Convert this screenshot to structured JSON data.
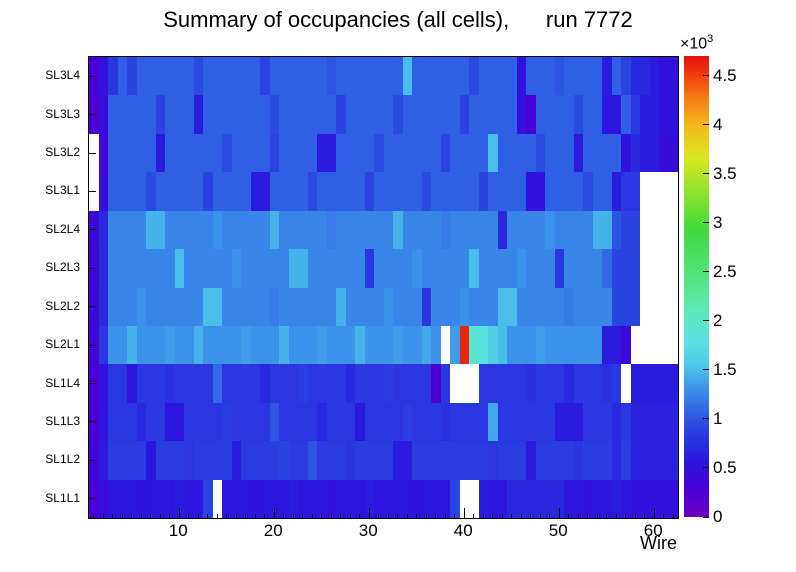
{
  "chart_data": {
    "type": "heatmap",
    "title": "Summary of occupancies (all cells),      run 7772",
    "xlabel": "Wire",
    "ylabel": "",
    "x_ticks": [
      10,
      20,
      30,
      40,
      50,
      60
    ],
    "x_range": [
      0.5,
      62.5
    ],
    "n_wires": 62,
    "row_labels_top_to_bottom": [
      "SL3L4",
      "SL3L3",
      "SL3L2",
      "SL3L1",
      "SL2L4",
      "SL2L3",
      "SL2L2",
      "SL2L1",
      "SL1L4",
      "SL1L3",
      "SL1L2",
      "SL1L1"
    ],
    "zmax": 4700,
    "z_tick_scale": 1000,
    "colorbar_ticks": [
      0,
      0.5,
      1,
      1.5,
      2,
      2.5,
      3,
      3.5,
      4,
      4.5
    ],
    "z_scale_label": {
      "base": "×10",
      "exp": "3"
    },
    "empty_color": "#ffffff",
    "palette_stops": [
      [
        0.0,
        "#6f00bf"
      ],
      [
        0.06,
        "#4a00d6"
      ],
      [
        0.12,
        "#2a16dc"
      ],
      [
        0.2,
        "#2a49e2"
      ],
      [
        0.27,
        "#3a8ae8"
      ],
      [
        0.33,
        "#4fc8ea"
      ],
      [
        0.38,
        "#59e2e2"
      ],
      [
        0.45,
        "#5aeab4"
      ],
      [
        0.53,
        "#53e27a"
      ],
      [
        0.62,
        "#3fd93f"
      ],
      [
        0.7,
        "#8ae22e"
      ],
      [
        0.78,
        "#d9e822"
      ],
      [
        0.85,
        "#f5b71c"
      ],
      [
        0.91,
        "#f57c14"
      ],
      [
        0.96,
        "#f03a0e"
      ],
      [
        1.0,
        "#e60f0f"
      ]
    ],
    "matrix_rows_top_to_bottom": [
      [
        300,
        500,
        800,
        1050,
        900,
        1050,
        1050,
        1050,
        1050,
        1050,
        1050,
        950,
        1050,
        1050,
        1050,
        1050,
        1050,
        1050,
        900,
        1050,
        1050,
        1050,
        1050,
        1050,
        1050,
        1000,
        1050,
        1050,
        1050,
        1050,
        1050,
        1050,
        1050,
        1500,
        1050,
        1050,
        1050,
        1050,
        1050,
        1050,
        950,
        1050,
        1050,
        1050,
        1050,
        500,
        1050,
        1050,
        1050,
        1000,
        1050,
        1050,
        1050,
        1050,
        600,
        1050,
        900,
        700,
        700,
        600,
        500,
        500
      ],
      [
        250,
        450,
        1050,
        1050,
        1050,
        1050,
        1050,
        900,
        1050,
        1050,
        1050,
        600,
        1050,
        1050,
        1050,
        1050,
        1050,
        1050,
        1050,
        950,
        1050,
        1050,
        1050,
        1050,
        1050,
        1050,
        900,
        1050,
        1050,
        1050,
        1050,
        1050,
        950,
        1050,
        1050,
        1050,
        1050,
        1050,
        1050,
        900,
        1050,
        1050,
        1050,
        1050,
        1050,
        500,
        300,
        1050,
        1050,
        1050,
        1050,
        950,
        1050,
        1050,
        550,
        550,
        1050,
        800,
        600,
        600,
        500,
        500
      ],
      [
        null,
        400,
        1050,
        1050,
        1050,
        1050,
        1050,
        600,
        1050,
        1050,
        1050,
        1050,
        1050,
        1050,
        950,
        1050,
        1050,
        1050,
        1050,
        900,
        1050,
        1050,
        1050,
        1050,
        600,
        600,
        1050,
        1050,
        1050,
        1050,
        950,
        1050,
        1050,
        1050,
        1050,
        1050,
        1050,
        900,
        1050,
        1050,
        1050,
        1050,
        1500,
        1050,
        1050,
        1050,
        1050,
        950,
        1050,
        1050,
        1050,
        600,
        1050,
        1050,
        1050,
        1050,
        500,
        700,
        600,
        600,
        450,
        450
      ],
      [
        null,
        450,
        1050,
        1050,
        1050,
        1050,
        950,
        1050,
        1050,
        1050,
        1050,
        1050,
        900,
        1050,
        1050,
        1050,
        1050,
        600,
        600,
        1050,
        1050,
        1050,
        1050,
        950,
        1050,
        1050,
        1050,
        1050,
        1050,
        900,
        1050,
        1050,
        1050,
        1050,
        1050,
        950,
        1050,
        1050,
        1050,
        1050,
        1050,
        900,
        1050,
        1050,
        1050,
        1050,
        500,
        500,
        1050,
        1050,
        1050,
        1050,
        950,
        1050,
        1050,
        600,
        800,
        800,
        null,
        null,
        null,
        null
      ],
      [
        400,
        700,
        1250,
        1250,
        1250,
        1250,
        1450,
        1450,
        1250,
        1250,
        1250,
        1250,
        1250,
        1300,
        1250,
        1250,
        1250,
        1250,
        1250,
        1450,
        1250,
        1250,
        1250,
        1250,
        1250,
        1200,
        1250,
        1250,
        1250,
        1250,
        1250,
        1250,
        1450,
        1250,
        1250,
        1250,
        1250,
        1200,
        1250,
        1250,
        1250,
        1250,
        1250,
        700,
        1250,
        1250,
        1250,
        1250,
        1300,
        1250,
        1250,
        1250,
        1250,
        1450,
        1450,
        1000,
        900,
        900,
        null,
        null,
        null,
        null
      ],
      [
        350,
        700,
        1250,
        1250,
        1250,
        1250,
        1250,
        1250,
        1250,
        1500,
        1250,
        1250,
        1250,
        1250,
        1250,
        1300,
        1250,
        1250,
        1250,
        1250,
        1250,
        1450,
        1450,
        1250,
        1250,
        1250,
        1250,
        1250,
        1250,
        800,
        1250,
        1250,
        1250,
        1250,
        1300,
        1250,
        1250,
        1250,
        1250,
        1250,
        1500,
        1250,
        1250,
        1250,
        1250,
        1300,
        1250,
        1250,
        1250,
        800,
        1250,
        1250,
        1250,
        1250,
        1100,
        900,
        900,
        900,
        null,
        null,
        null,
        null
      ],
      [
        400,
        700,
        1250,
        1250,
        1250,
        1300,
        1250,
        1250,
        1250,
        1250,
        1250,
        1250,
        1500,
        1500,
        1250,
        1250,
        1250,
        1250,
        1250,
        1200,
        1250,
        1250,
        1250,
        1250,
        1250,
        1250,
        1450,
        1250,
        1250,
        1250,
        1250,
        1300,
        1250,
        1250,
        1250,
        800,
        1250,
        1250,
        1250,
        1300,
        1250,
        1250,
        1250,
        1500,
        1500,
        1250,
        1250,
        1250,
        1250,
        1250,
        1200,
        1250,
        1250,
        1250,
        1250,
        900,
        900,
        900,
        null,
        null,
        null,
        null
      ],
      [
        350,
        800,
        1300,
        1300,
        1450,
        1300,
        1300,
        1300,
        1350,
        1300,
        1300,
        1450,
        1300,
        1300,
        1300,
        1300,
        1350,
        1300,
        1300,
        1300,
        1450,
        1300,
        1300,
        1300,
        1350,
        1300,
        1300,
        1300,
        1450,
        1300,
        1300,
        1300,
        1350,
        1300,
        1300,
        1400,
        1300,
        null,
        1350,
        4600,
        1900,
        1800,
        1600,
        1500,
        1300,
        1300,
        1300,
        1350,
        1300,
        1300,
        1300,
        1300,
        1300,
        1300,
        600,
        600,
        400,
        null,
        null,
        null,
        null,
        null
      ],
      [
        300,
        500,
        800,
        800,
        550,
        800,
        800,
        800,
        750,
        800,
        800,
        800,
        800,
        1100,
        800,
        800,
        800,
        800,
        700,
        800,
        800,
        800,
        850,
        800,
        800,
        800,
        800,
        700,
        800,
        800,
        800,
        850,
        800,
        800,
        800,
        800,
        250,
        800,
        null,
        null,
        null,
        800,
        800,
        800,
        800,
        800,
        750,
        800,
        800,
        800,
        700,
        800,
        800,
        800,
        750,
        800,
        null,
        600,
        600,
        600,
        600,
        600
      ],
      [
        300,
        550,
        800,
        800,
        800,
        700,
        800,
        800,
        550,
        550,
        800,
        800,
        800,
        800,
        850,
        800,
        800,
        800,
        800,
        1000,
        800,
        800,
        800,
        800,
        700,
        800,
        800,
        800,
        550,
        800,
        800,
        800,
        800,
        850,
        800,
        800,
        800,
        750,
        800,
        800,
        800,
        800,
        1400,
        800,
        800,
        800,
        800,
        800,
        800,
        600,
        600,
        600,
        800,
        800,
        800,
        700,
        800,
        650,
        650,
        650,
        650,
        650
      ],
      [
        350,
        600,
        850,
        850,
        850,
        850,
        550,
        850,
        850,
        850,
        800,
        850,
        850,
        850,
        850,
        600,
        850,
        850,
        850,
        850,
        900,
        850,
        850,
        1000,
        850,
        850,
        850,
        800,
        850,
        850,
        850,
        850,
        600,
        600,
        850,
        850,
        850,
        850,
        850,
        850,
        850,
        850,
        800,
        850,
        850,
        850,
        600,
        850,
        850,
        850,
        850,
        800,
        850,
        850,
        850,
        700,
        850,
        650,
        650,
        650,
        650,
        650
      ],
      [
        300,
        450,
        550,
        550,
        550,
        500,
        550,
        550,
        550,
        600,
        550,
        550,
        900,
        null,
        550,
        550,
        550,
        500,
        550,
        550,
        550,
        600,
        550,
        550,
        550,
        500,
        550,
        550,
        550,
        600,
        550,
        550,
        550,
        550,
        500,
        550,
        550,
        550,
        900,
        null,
        null,
        600,
        550,
        550,
        700,
        700,
        700,
        700,
        700,
        700,
        550,
        550,
        500,
        550,
        550,
        600,
        550,
        500,
        500,
        500,
        500,
        500
      ]
    ]
  }
}
